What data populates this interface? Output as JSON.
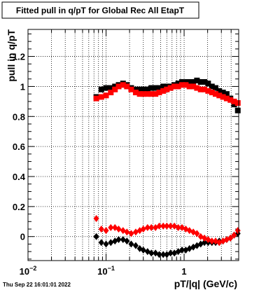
{
  "chart_data": {
    "type": "scatter",
    "title": "Fitted pull in q/pT for Global Rec All EtapT",
    "xlabel": "pT/|q| (GeV/c)",
    "ylabel": "pull in q/pT",
    "x_scale": "log",
    "xlim": [
      0.01,
      5.0
    ],
    "ylim": [
      -0.16,
      1.38
    ],
    "grid": true,
    "x_tick_labels": [
      {
        "value": 0.01,
        "base": "10",
        "exp": "−2"
      },
      {
        "value": 0.1,
        "base": "10",
        "exp": "−1"
      },
      {
        "value": 1,
        "base": "1",
        "exp": ""
      }
    ],
    "y_ticks": [
      0,
      0.2,
      0.4,
      0.6,
      0.8,
      1,
      1.2
    ],
    "y_tick_labels": [
      "0",
      "0.2",
      "0.4",
      "0.6",
      "0.8",
      "1",
      "1.2"
    ],
    "footer": "Thu Sep 22 16:01:01 2022",
    "series": [
      {
        "marker": "square",
        "color": "#000000",
        "points": [
          [
            0.075,
            0.93
          ],
          [
            0.087,
            0.98
          ],
          [
            0.1,
            0.99
          ],
          [
            0.115,
            0.99
          ],
          [
            0.13,
            1.0
          ],
          [
            0.145,
            1.01
          ],
          [
            0.165,
            1.02
          ],
          [
            0.185,
            1.01
          ],
          [
            0.21,
            0.99
          ],
          [
            0.24,
            0.98
          ],
          [
            0.27,
            0.98
          ],
          [
            0.3,
            0.98
          ],
          [
            0.34,
            0.98
          ],
          [
            0.38,
            0.99
          ],
          [
            0.43,
            0.99
          ],
          [
            0.48,
            0.99
          ],
          [
            0.54,
            1.0
          ],
          [
            0.6,
            1.0
          ],
          [
            0.67,
            1.0
          ],
          [
            0.75,
            1.01
          ],
          [
            0.84,
            1.02
          ],
          [
            0.94,
            1.03
          ],
          [
            1.05,
            1.03
          ],
          [
            1.17,
            1.03
          ],
          [
            1.31,
            1.03
          ],
          [
            1.46,
            1.04
          ],
          [
            1.63,
            1.03
          ],
          [
            1.82,
            1.03
          ],
          [
            2.03,
            1.02
          ],
          [
            2.27,
            1.0
          ],
          [
            2.53,
            0.99
          ],
          [
            2.82,
            0.97
          ],
          [
            3.15,
            0.96
          ],
          [
            3.51,
            0.95
          ],
          [
            3.92,
            0.92
          ],
          [
            4.37,
            0.88
          ],
          [
            4.87,
            0.84
          ]
        ]
      },
      {
        "marker": "square",
        "color": "#ff0000",
        "points": [
          [
            0.075,
            0.92
          ],
          [
            0.087,
            0.93
          ],
          [
            0.1,
            0.94
          ],
          [
            0.115,
            0.96
          ],
          [
            0.13,
            0.98
          ],
          [
            0.145,
            1.0
          ],
          [
            0.165,
            1.01
          ],
          [
            0.185,
            1.0
          ],
          [
            0.21,
            0.98
          ],
          [
            0.24,
            0.96
          ],
          [
            0.27,
            0.95
          ],
          [
            0.3,
            0.95
          ],
          [
            0.34,
            0.95
          ],
          [
            0.38,
            0.95
          ],
          [
            0.43,
            0.95
          ],
          [
            0.48,
            0.96
          ],
          [
            0.54,
            0.97
          ],
          [
            0.6,
            0.98
          ],
          [
            0.67,
            0.99
          ],
          [
            0.75,
            1.0
          ],
          [
            0.84,
            1.0
          ],
          [
            0.94,
            1.01
          ],
          [
            1.05,
            1.01
          ],
          [
            1.17,
            1.0
          ],
          [
            1.31,
            1.0
          ],
          [
            1.46,
            0.99
          ],
          [
            1.63,
            0.98
          ],
          [
            1.82,
            0.98
          ],
          [
            2.03,
            0.97
          ],
          [
            2.27,
            0.96
          ],
          [
            2.53,
            0.95
          ],
          [
            2.82,
            0.94
          ],
          [
            3.15,
            0.93
          ],
          [
            3.51,
            0.92
          ],
          [
            3.92,
            0.91
          ],
          [
            4.37,
            0.9
          ],
          [
            4.87,
            0.89
          ]
        ]
      },
      {
        "marker": "diamond",
        "color": "#000000",
        "points": [
          [
            0.075,
            0.0
          ],
          [
            0.087,
            -0.04
          ],
          [
            0.1,
            -0.05
          ],
          [
            0.115,
            -0.04
          ],
          [
            0.13,
            -0.03
          ],
          [
            0.145,
            -0.02
          ],
          [
            0.165,
            -0.02
          ],
          [
            0.185,
            -0.03
          ],
          [
            0.21,
            -0.05
          ],
          [
            0.24,
            -0.06
          ],
          [
            0.27,
            -0.08
          ],
          [
            0.3,
            -0.09
          ],
          [
            0.34,
            -0.1
          ],
          [
            0.38,
            -0.11
          ],
          [
            0.43,
            -0.11
          ],
          [
            0.48,
            -0.12
          ],
          [
            0.54,
            -0.12
          ],
          [
            0.6,
            -0.12
          ],
          [
            0.67,
            -0.11
          ],
          [
            0.75,
            -0.11
          ],
          [
            0.84,
            -0.1
          ],
          [
            0.94,
            -0.09
          ],
          [
            1.05,
            -0.09
          ],
          [
            1.17,
            -0.08
          ],
          [
            1.31,
            -0.07
          ],
          [
            1.46,
            -0.06
          ],
          [
            1.63,
            -0.05
          ],
          [
            1.82,
            -0.04
          ],
          [
            2.03,
            -0.04
          ],
          [
            2.27,
            -0.04
          ],
          [
            2.53,
            -0.04
          ],
          [
            2.82,
            -0.03
          ],
          [
            3.15,
            -0.03
          ],
          [
            3.51,
            -0.02
          ],
          [
            3.92,
            -0.01
          ],
          [
            4.37,
            0.01
          ],
          [
            4.87,
            0.02
          ]
        ]
      },
      {
        "marker": "diamond",
        "color": "#ff0000",
        "points": [
          [
            0.075,
            0.12
          ],
          [
            0.087,
            0.05
          ],
          [
            0.1,
            0.04
          ],
          [
            0.115,
            0.06
          ],
          [
            0.13,
            0.06
          ],
          [
            0.145,
            0.05
          ],
          [
            0.165,
            0.04
          ],
          [
            0.185,
            0.03
          ],
          [
            0.21,
            0.02
          ],
          [
            0.24,
            0.03
          ],
          [
            0.27,
            0.04
          ],
          [
            0.3,
            0.05
          ],
          [
            0.34,
            0.06
          ],
          [
            0.38,
            0.06
          ],
          [
            0.43,
            0.06
          ],
          [
            0.48,
            0.07
          ],
          [
            0.54,
            0.07
          ],
          [
            0.6,
            0.07
          ],
          [
            0.67,
            0.07
          ],
          [
            0.75,
            0.07
          ],
          [
            0.84,
            0.06
          ],
          [
            0.94,
            0.06
          ],
          [
            1.05,
            0.05
          ],
          [
            1.17,
            0.04
          ],
          [
            1.31,
            0.03
          ],
          [
            1.46,
            0.02
          ],
          [
            1.63,
            0.0
          ],
          [
            1.82,
            -0.01
          ],
          [
            2.03,
            -0.02
          ],
          [
            2.27,
            -0.03
          ],
          [
            2.53,
            -0.03
          ],
          [
            2.82,
            -0.04
          ],
          [
            3.15,
            -0.03
          ],
          [
            3.51,
            -0.02
          ],
          [
            3.92,
            -0.01
          ],
          [
            4.37,
            0.01
          ],
          [
            4.87,
            0.04
          ]
        ]
      }
    ]
  }
}
